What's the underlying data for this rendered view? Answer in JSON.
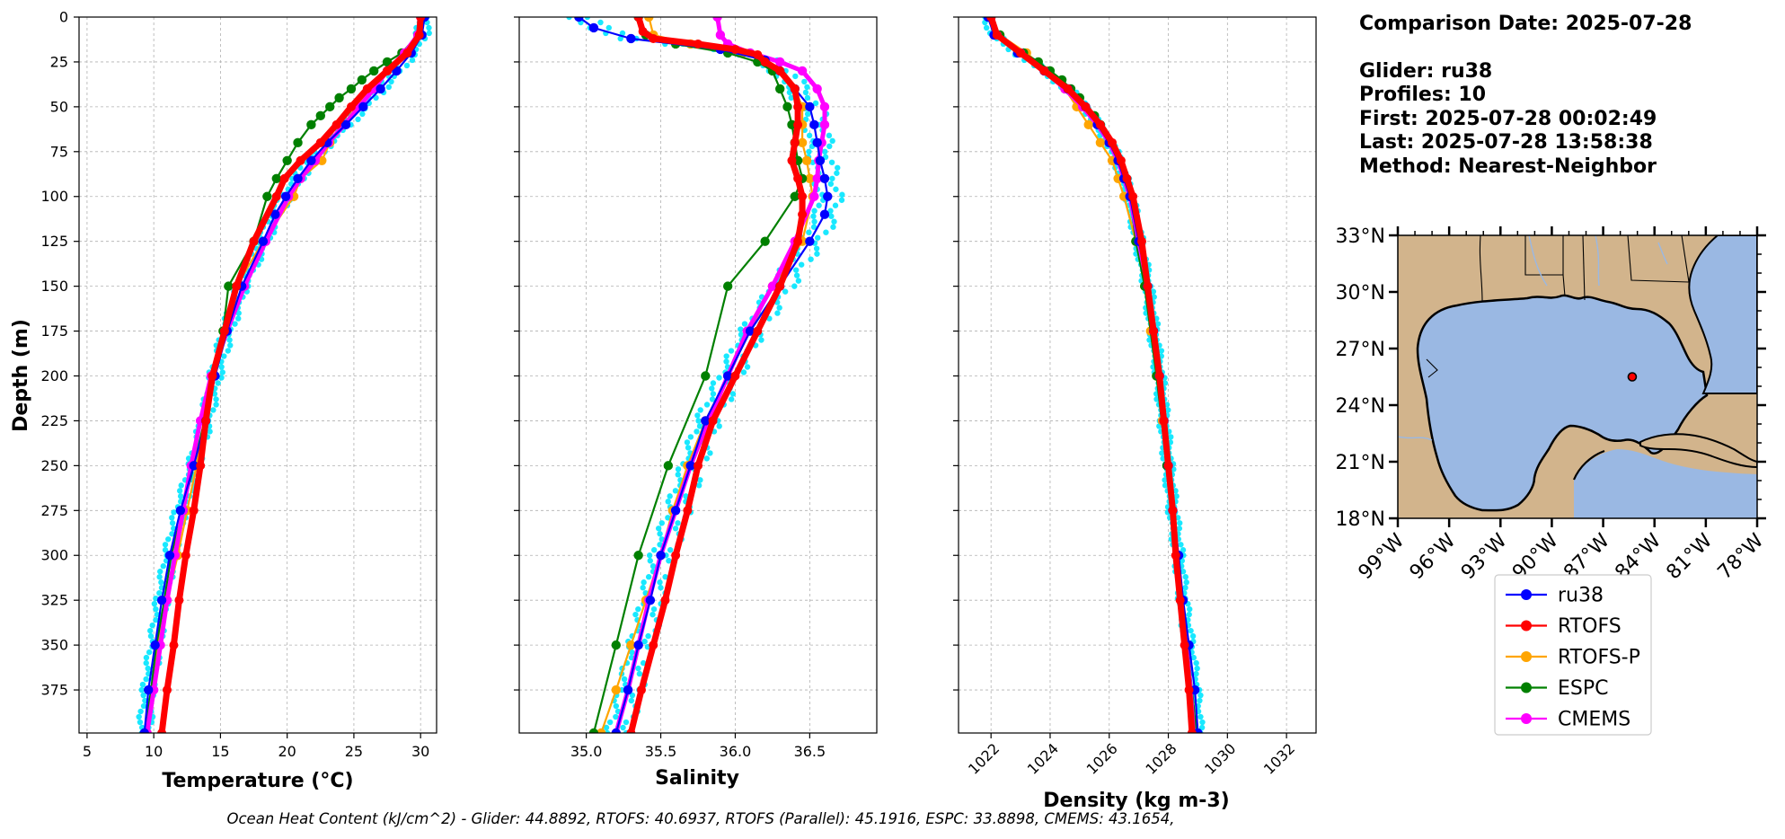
{
  "info": {
    "comparison_date": "Comparison Date: 2025-07-28",
    "glider": "Glider: ru38",
    "profiles": "Profiles: 10",
    "first": "First: 2025-07-28 00:02:49",
    "last": "Last: 2025-07-28 13:58:38",
    "method": "Method: Nearest-Neighbor"
  },
  "footer": "Ocean Heat Content (kJ/cm^2) - Glider: 44.8892,  RTOFS: 40.6937,  RTOFS (Parallel): 45.1916,  ESPC: 33.8898,  CMEMS: 43.1654,",
  "colors": {
    "ru38": "#0000ff",
    "RTOFS": "#ff0000",
    "RTOFS-P": "#ffa500",
    "ESPC": "#008000",
    "CMEMS": "#ff00ff",
    "raw_profiles": "#00e5ff",
    "land": "#d2b48c",
    "ocean": "#9ab8e3"
  },
  "legend": [
    "ru38",
    "RTOFS",
    "RTOFS-P",
    "ESPC",
    "CMEMS"
  ],
  "chart_data": [
    {
      "type": "line",
      "panel": "temperature",
      "xlabel": "Temperature (°C)",
      "ylabel": "Depth (m)",
      "xlim": [
        4.4,
        31.2
      ],
      "ylim": [
        399,
        0
      ],
      "xticks": [
        5,
        10,
        15,
        20,
        25,
        30
      ],
      "xtick_labels": [
        "5",
        "10",
        "15",
        "20",
        "25",
        "30"
      ],
      "yticks": [
        0,
        25,
        50,
        75,
        100,
        125,
        150,
        175,
        200,
        225,
        250,
        275,
        300,
        325,
        350,
        375
      ],
      "ytick_labels": [
        "0",
        "25",
        "50",
        "75",
        "100",
        "125",
        "150",
        "175",
        "200",
        "225",
        "250",
        "275",
        "300",
        "325",
        "350",
        "375"
      ],
      "grid": true,
      "series": [
        {
          "name": "ru38",
          "depth": [
            0,
            10,
            20,
            30,
            40,
            50,
            60,
            70,
            80,
            90,
            100,
            110,
            125,
            150,
            175,
            200,
            225,
            250,
            275,
            300,
            325,
            350,
            375,
            399
          ],
          "values": [
            30.3,
            30.1,
            29.3,
            28.2,
            27.0,
            25.7,
            24.4,
            23.0,
            21.8,
            20.8,
            19.9,
            19.1,
            18.2,
            16.6,
            15.5,
            14.6,
            13.9,
            13.0,
            12.0,
            11.2,
            10.6,
            10.1,
            9.6,
            9.3
          ]
        },
        {
          "name": "RTOFS",
          "depth": [
            0,
            10,
            20,
            30,
            40,
            50,
            60,
            70,
            80,
            90,
            100,
            125,
            150,
            175,
            200,
            225,
            250,
            275,
            300,
            325,
            350,
            375,
            399
          ],
          "values": [
            30.0,
            29.9,
            29.0,
            27.5,
            26.0,
            24.8,
            23.7,
            22.5,
            21.0,
            19.8,
            19.2,
            17.5,
            16.2,
            15.3,
            14.4,
            13.9,
            13.5,
            13.0,
            12.4,
            11.9,
            11.5,
            11.0,
            10.6
          ]
        },
        {
          "name": "RTOFS-P",
          "depth": [
            0,
            10,
            20,
            30,
            40,
            50,
            60,
            70,
            80,
            90,
            100,
            125,
            150,
            175,
            200,
            225,
            250,
            275,
            300,
            325,
            350,
            375,
            399
          ],
          "values": [
            30.1,
            29.9,
            29.0,
            27.5,
            26.3,
            25.2,
            24.2,
            23.2,
            22.6,
            21.0,
            20.5,
            18.2,
            16.2,
            15.2,
            14.4,
            13.8,
            13.2,
            12.5,
            11.8,
            11.0,
            10.3,
            9.8,
            9.5
          ]
        },
        {
          "name": "ESPC",
          "depth": [
            0,
            10,
            20,
            25,
            30,
            35,
            40,
            45,
            50,
            55,
            60,
            70,
            80,
            90,
            100,
            125,
            150,
            175,
            200,
            225,
            250,
            275,
            300,
            325,
            350,
            375,
            399
          ],
          "values": [
            30.1,
            29.8,
            28.6,
            27.5,
            26.5,
            25.6,
            24.8,
            23.9,
            23.2,
            22.5,
            21.8,
            20.8,
            20.0,
            19.2,
            18.5,
            17.5,
            15.6,
            15.2,
            14.5,
            13.8,
            13.0,
            12.2,
            11.3,
            10.8,
            10.2,
            9.8,
            9.3
          ]
        },
        {
          "name": "CMEMS",
          "depth": [
            0,
            10,
            20,
            30,
            40,
            50,
            60,
            70,
            80,
            90,
            100,
            125,
            150,
            175,
            200,
            225,
            250,
            275,
            300,
            325,
            350,
            375,
            399
          ],
          "values": [
            30.0,
            29.8,
            28.8,
            27.5,
            26.5,
            25.4,
            24.3,
            23.1,
            22.1,
            21.0,
            20.1,
            18.4,
            16.8,
            15.5,
            14.3,
            13.5,
            12.8,
            12.2,
            11.6,
            11.0,
            10.5,
            10.0,
            9.5
          ]
        }
      ]
    },
    {
      "type": "line",
      "panel": "salinity",
      "xlabel": "Salinity",
      "xlim": [
        34.55,
        36.95
      ],
      "ylim": [
        399,
        0
      ],
      "xticks": [
        35.0,
        35.5,
        36.0,
        36.5
      ],
      "xtick_labels": [
        "35.0",
        "35.5",
        "36.0",
        "36.5"
      ],
      "grid": true,
      "series": [
        {
          "name": "ru38",
          "depth": [
            0,
            6,
            12,
            18,
            24,
            30,
            40,
            50,
            60,
            70,
            80,
            90,
            100,
            110,
            125,
            150,
            175,
            200,
            225,
            250,
            275,
            300,
            325,
            350,
            375,
            399
          ],
          "values": [
            34.95,
            35.05,
            35.3,
            35.9,
            36.2,
            36.3,
            36.4,
            36.5,
            36.53,
            36.55,
            36.57,
            36.6,
            36.62,
            36.6,
            36.5,
            36.3,
            36.1,
            35.95,
            35.8,
            35.7,
            35.6,
            35.5,
            35.43,
            35.35,
            35.28,
            35.2
          ]
        },
        {
          "name": "RTOFS",
          "depth": [
            0,
            8,
            12,
            15,
            18,
            21,
            25,
            30,
            40,
            50,
            60,
            70,
            80,
            90,
            100,
            110,
            125,
            150,
            175,
            200,
            225,
            250,
            275,
            300,
            325,
            350,
            375,
            399
          ],
          "values": [
            35.35,
            35.38,
            35.45,
            35.75,
            36.0,
            36.15,
            36.2,
            36.3,
            36.4,
            36.42,
            36.42,
            36.4,
            36.38,
            36.42,
            36.45,
            36.45,
            36.42,
            36.3,
            36.15,
            36.0,
            35.85,
            35.75,
            35.68,
            35.6,
            35.53,
            35.45,
            35.37,
            35.3
          ]
        },
        {
          "name": "RTOFS-P",
          "depth": [
            0,
            10,
            15,
            20,
            25,
            30,
            40,
            50,
            60,
            70,
            80,
            90,
            100,
            125,
            150,
            175,
            200,
            225,
            250,
            275,
            300,
            325,
            350,
            375,
            399
          ],
          "values": [
            35.42,
            35.45,
            35.7,
            36.05,
            36.2,
            36.3,
            36.4,
            36.45,
            36.45,
            36.45,
            36.48,
            36.5,
            36.52,
            36.45,
            36.25,
            36.1,
            35.95,
            35.8,
            35.68,
            35.58,
            35.5,
            35.4,
            35.3,
            35.2,
            35.1
          ]
        },
        {
          "name": "ESPC",
          "depth": [
            0,
            10,
            15,
            20,
            25,
            30,
            40,
            50,
            60,
            70,
            80,
            90,
            100,
            125,
            150,
            200,
            250,
            300,
            350,
            399
          ],
          "values": [
            35.35,
            35.4,
            35.6,
            35.95,
            36.15,
            36.25,
            36.3,
            36.35,
            36.38,
            36.4,
            36.42,
            36.45,
            36.4,
            36.2,
            35.95,
            35.8,
            35.55,
            35.35,
            35.2,
            35.05
          ]
        },
        {
          "name": "CMEMS",
          "depth": [
            0,
            10,
            15,
            20,
            25,
            30,
            40,
            50,
            60,
            70,
            80,
            90,
            100,
            125,
            150,
            175,
            200,
            225,
            250,
            275,
            300,
            325,
            350,
            375,
            399
          ],
          "values": [
            35.88,
            35.9,
            35.95,
            36.1,
            36.3,
            36.45,
            36.55,
            36.6,
            36.6,
            36.58,
            36.56,
            36.55,
            36.53,
            36.4,
            36.25,
            36.08,
            35.95,
            35.82,
            35.7,
            35.6,
            35.5,
            35.42,
            35.35,
            35.28,
            35.2
          ]
        }
      ]
    },
    {
      "type": "line",
      "panel": "density",
      "xlabel": "Density (kg m-3)",
      "xlim": [
        1020.9,
        1033.0
      ],
      "ylim": [
        399,
        0
      ],
      "xticks": [
        1022,
        1024,
        1026,
        1028,
        1030,
        1032
      ],
      "xtick_labels": [
        "1022",
        "1024",
        "1026",
        "1028",
        "1030",
        "1032"
      ],
      "grid": true,
      "series": [
        {
          "name": "ru38",
          "depth": [
            0,
            10,
            20,
            30,
            40,
            50,
            60,
            70,
            80,
            90,
            100,
            125,
            150,
            175,
            200,
            225,
            250,
            275,
            300,
            325,
            350,
            375,
            399
          ],
          "values": [
            1021.9,
            1022.1,
            1022.9,
            1023.8,
            1024.6,
            1025.2,
            1025.6,
            1026.0,
            1026.3,
            1026.5,
            1026.7,
            1027.0,
            1027.3,
            1027.5,
            1027.7,
            1027.85,
            1028.0,
            1028.15,
            1028.35,
            1028.5,
            1028.7,
            1028.9,
            1029.0
          ]
        },
        {
          "name": "RTOFS",
          "depth": [
            0,
            10,
            20,
            30,
            40,
            50,
            60,
            70,
            80,
            90,
            100,
            125,
            150,
            175,
            200,
            225,
            250,
            275,
            300,
            325,
            350,
            375,
            399
          ],
          "values": [
            1022.0,
            1022.2,
            1023.0,
            1023.8,
            1024.6,
            1025.2,
            1025.7,
            1026.1,
            1026.4,
            1026.6,
            1026.8,
            1027.1,
            1027.3,
            1027.5,
            1027.7,
            1027.85,
            1028.0,
            1028.15,
            1028.25,
            1028.4,
            1028.55,
            1028.7,
            1028.8
          ]
        },
        {
          "name": "RTOFS-P",
          "depth": [
            0,
            10,
            20,
            30,
            40,
            50,
            60,
            70,
            80,
            90,
            100,
            125,
            150,
            175,
            200,
            225,
            250,
            275,
            300,
            325,
            350,
            375,
            399
          ],
          "values": [
            1022.0,
            1022.3,
            1023.2,
            1023.9,
            1024.5,
            1024.9,
            1025.3,
            1025.7,
            1026.1,
            1026.3,
            1026.5,
            1026.9,
            1027.2,
            1027.4,
            1027.6,
            1027.8,
            1028.0,
            1028.15,
            1028.3,
            1028.45,
            1028.6,
            1028.75,
            1028.85
          ]
        },
        {
          "name": "ESPC",
          "depth": [
            0,
            10,
            20,
            25,
            30,
            35,
            40,
            45,
            50,
            55,
            60,
            70,
            80,
            90,
            100,
            125,
            150,
            200,
            250,
            300,
            350,
            399
          ],
          "values": [
            1022.0,
            1022.3,
            1023.1,
            1023.6,
            1024.0,
            1024.4,
            1024.7,
            1025.0,
            1025.2,
            1025.5,
            1025.7,
            1026.0,
            1026.3,
            1026.5,
            1026.7,
            1026.9,
            1027.2,
            1027.6,
            1027.95,
            1028.3,
            1028.65,
            1028.95
          ]
        },
        {
          "name": "CMEMS",
          "depth": [
            0,
            10,
            20,
            30,
            40,
            50,
            60,
            70,
            80,
            90,
            100,
            125,
            150,
            175,
            200,
            225,
            250,
            275,
            300,
            325,
            350,
            375,
            399
          ],
          "values": [
            1022.0,
            1022.2,
            1023.0,
            1023.8,
            1024.5,
            1025.1,
            1025.6,
            1026.0,
            1026.3,
            1026.5,
            1026.7,
            1027.0,
            1027.3,
            1027.5,
            1027.7,
            1027.85,
            1028.0,
            1028.15,
            1028.3,
            1028.45,
            1028.6,
            1028.75,
            1028.85
          ]
        }
      ]
    },
    {
      "type": "map",
      "panel": "location",
      "lon_range": [
        -99,
        -78
      ],
      "lat_range": [
        18,
        33
      ],
      "xticks": [
        -99,
        -96,
        -93,
        -90,
        -87,
        -84,
        -81,
        -78
      ],
      "xtick_labels": [
        "99°W",
        "96°W",
        "93°W",
        "90°W",
        "87°W",
        "84°W",
        "81°W",
        "78°W"
      ],
      "yticks": [
        18,
        21,
        24,
        27,
        30,
        33
      ],
      "ytick_labels": [
        "18°N",
        "21°N",
        "24°N",
        "27°N",
        "30°N",
        "33°N"
      ],
      "glider_position": {
        "lon": -85.3,
        "lat": 25.5
      }
    }
  ]
}
